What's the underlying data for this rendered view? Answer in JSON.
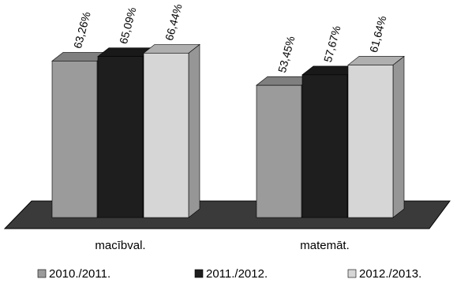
{
  "chart_data": {
    "type": "bar",
    "categories": [
      "macībval.",
      "matemāt."
    ],
    "series": [
      {
        "name": "2010./2011.",
        "values": [
          63.26,
          53.45
        ],
        "labels": [
          "63,26%",
          "53,45%"
        ],
        "color": "#9b9b9b"
      },
      {
        "name": "2011./2012.",
        "values": [
          65.09,
          57.67
        ],
        "labels": [
          "65,09%",
          "57,67%"
        ],
        "color": "#1e1e1e"
      },
      {
        "name": "2012./2013.",
        "values": [
          66.44,
          61.64
        ],
        "labels": [
          "66,44%",
          "61,64%"
        ],
        "color": "#d6d6d6"
      }
    ],
    "three_d": true,
    "legend_position": "bottom",
    "grid": false
  }
}
